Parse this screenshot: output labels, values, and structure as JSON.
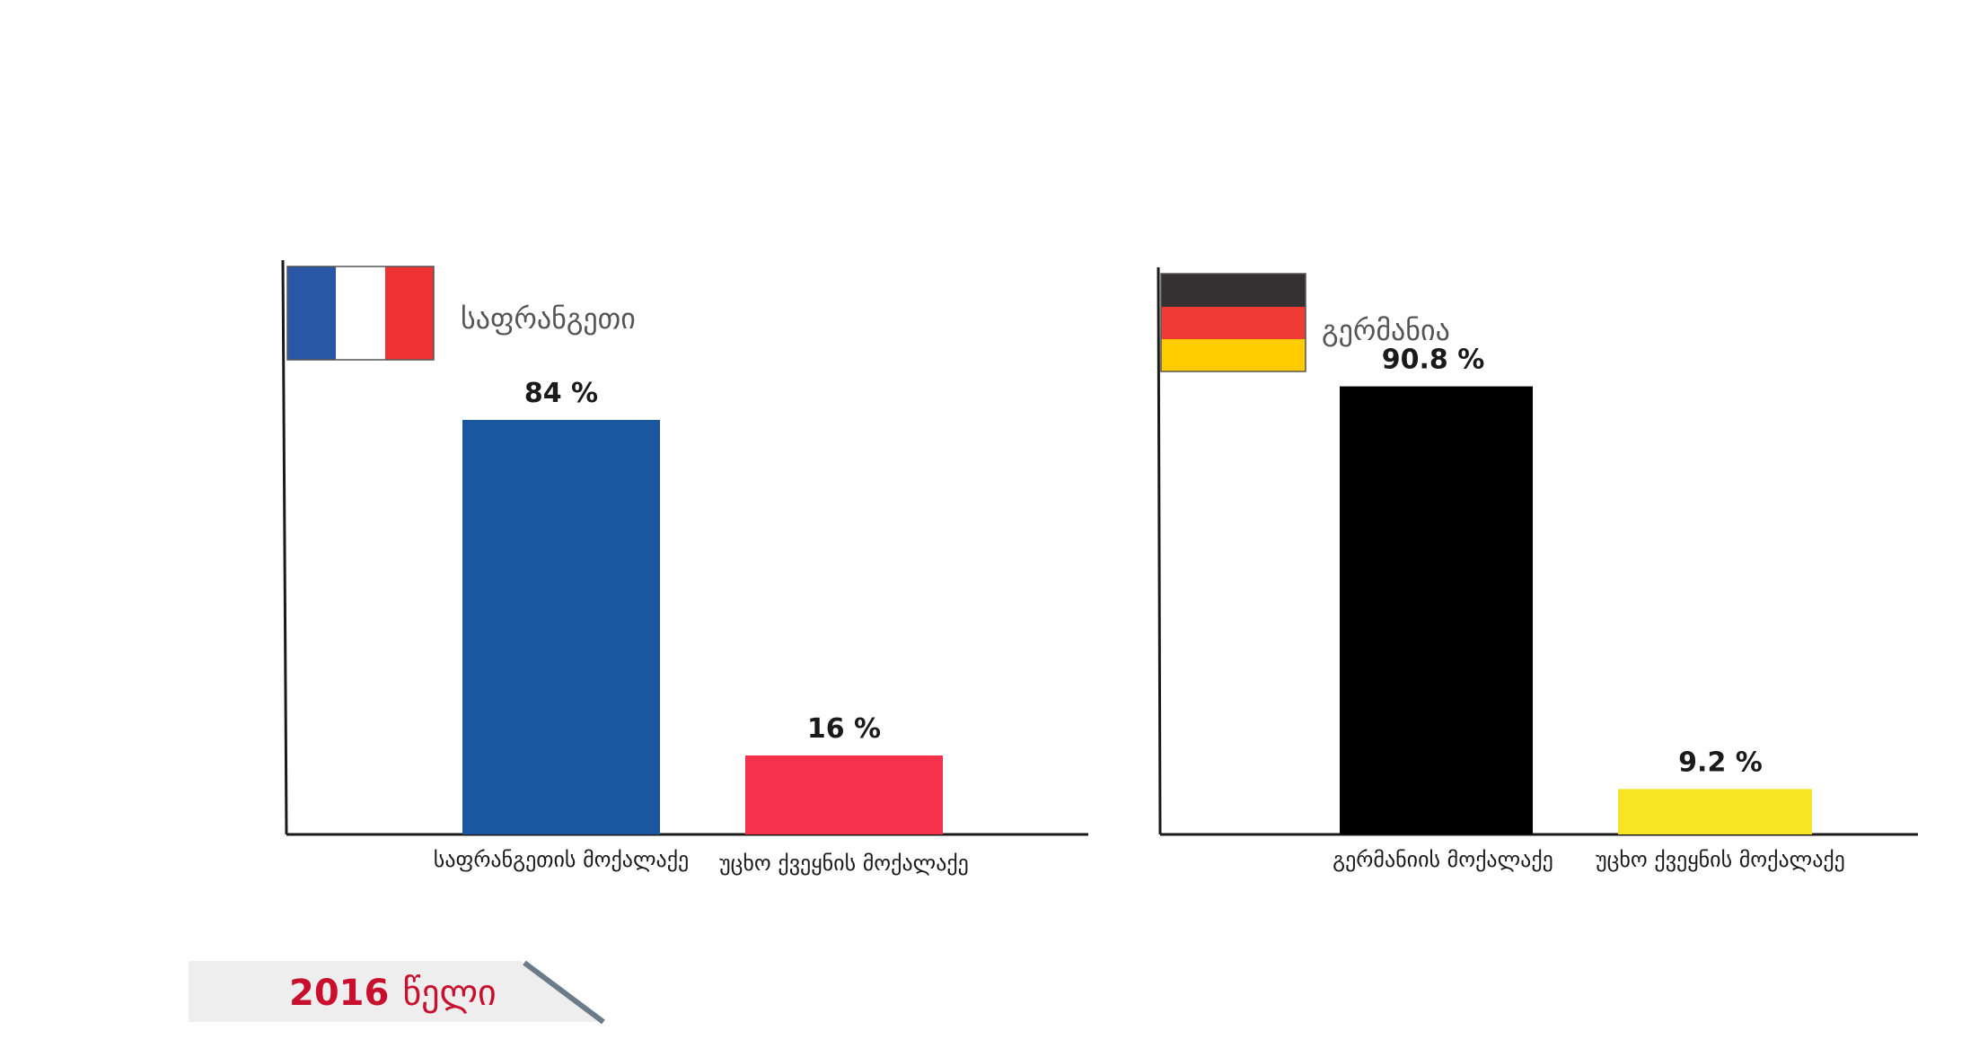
{
  "colors": {
    "france_blue": "#1b57a1",
    "france_red": "#f5314b",
    "germany_black": "#000000",
    "germany_yellow": "#f7e422",
    "flag_fr_blue": "#2a57a5",
    "flag_fr_white": "#ffffff",
    "flag_fr_red": "#ef3333",
    "flag_de_black": "#333132",
    "flag_de_red": "#ef3b34",
    "flag_de_gold": "#ffcc00",
    "year_accent": "#c8102e",
    "banner_bg": "#eeeeee",
    "banner_stripe": "#6b7b87"
  },
  "year_badge": {
    "number": "2016",
    "word": "წელი"
  },
  "chart_data": [
    {
      "type": "bar",
      "country": "საფრანგეთი",
      "flag": "france-flag",
      "categories": [
        "საფრანგეთის მოქალაქე",
        "უცხო ქვეყნის მოქალაქე"
      ],
      "values": [
        84,
        16
      ],
      "value_labels": [
        "84 %",
        "16 %"
      ],
      "ylim": [
        0,
        100
      ]
    },
    {
      "type": "bar",
      "country": "გერმანია",
      "flag": "germany-flag",
      "categories": [
        "გერმანიის მოქალაქე",
        "უცხო ქვეყნის მოქალაქე"
      ],
      "values": [
        90.8,
        9.2
      ],
      "value_labels": [
        "90.8 %",
        "9.2 %"
      ],
      "ylim": [
        0,
        100
      ]
    }
  ]
}
